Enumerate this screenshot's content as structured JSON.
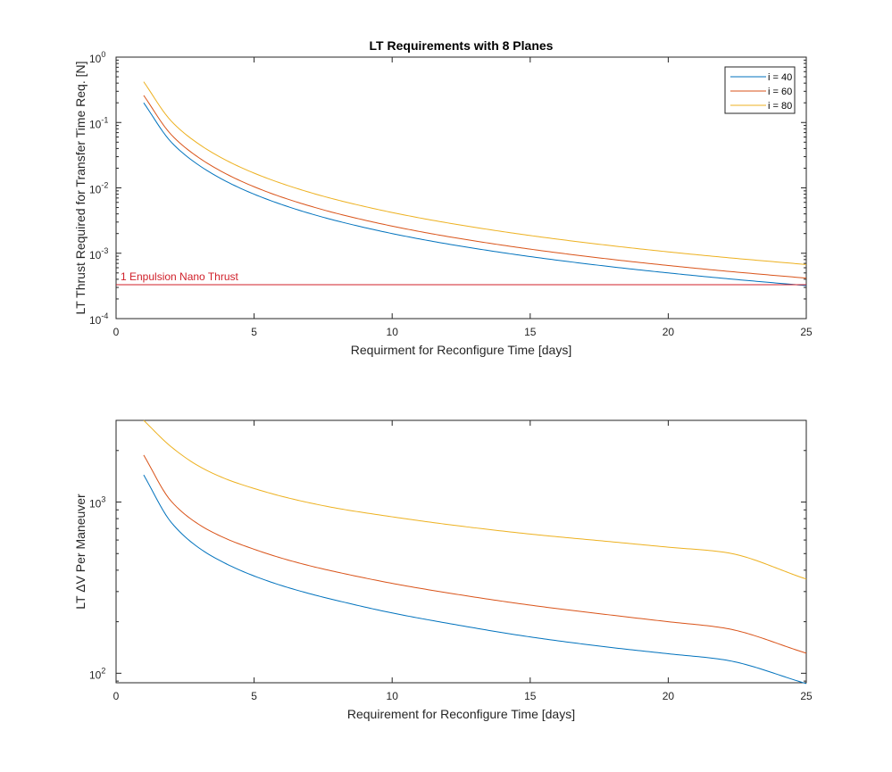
{
  "chart_data": [
    {
      "type": "line",
      "title": "LT Requirements with 8 Planes",
      "xlabel": "Requirment for Reconfigure Time [days]",
      "ylabel": "LT Thrust Required for Transfer Time Req. [N]",
      "xlim": [
        0,
        25
      ],
      "ylim": [
        0.0001,
        1
      ],
      "yscale": "log",
      "grid": false,
      "legend_position": "top-right",
      "x_ticks": [
        0,
        5,
        10,
        15,
        20,
        25
      ],
      "x_tick_labels": [
        "0",
        "5",
        "10",
        "15",
        "20",
        "25"
      ],
      "y_ticks": [
        0.0001,
        0.001,
        0.01,
        0.1,
        1
      ],
      "y_tick_bases": [
        "10",
        "10",
        "10",
        "10",
        "10"
      ],
      "y_tick_exps": [
        "-4",
        "-3",
        "-2",
        "-1",
        "0"
      ],
      "x": [
        1,
        2,
        3,
        4,
        5,
        6,
        7,
        8,
        10,
        12,
        15,
        18,
        20,
        22,
        25
      ],
      "series": [
        {
          "name": "i = 40",
          "color": "#0072BD",
          "values": [
            0.2,
            0.05,
            0.0222,
            0.0125,
            0.008,
            0.00556,
            0.00408,
            0.003125,
            0.002,
            0.001389,
            0.000889,
            0.000617,
            0.0005,
            0.000413,
            0.00032
          ]
        },
        {
          "name": "i = 60",
          "color": "#D95319",
          "values": [
            0.26,
            0.065,
            0.0289,
            0.01625,
            0.0104,
            0.00722,
            0.00531,
            0.00406,
            0.0026,
            0.001806,
            0.001156,
            0.000802,
            0.00065,
            0.000537,
            0.000416
          ]
        },
        {
          "name": "i = 80",
          "color": "#EDB120",
          "values": [
            0.42,
            0.105,
            0.0467,
            0.02625,
            0.0168,
            0.01167,
            0.00857,
            0.00656,
            0.0042,
            0.002917,
            0.001867,
            0.001296,
            0.00105,
            0.000868,
            0.000672
          ]
        }
      ],
      "reference_line": {
        "label": "1 Enpulsion Nano Thrust",
        "value": 0.00033,
        "color": "#D0202A"
      }
    },
    {
      "type": "line",
      "title": "",
      "xlabel": "Requirement for Reconfigure Time [days]",
      "ylabel": "LT ΔV Per Maneuver",
      "xlim": [
        0,
        25
      ],
      "ylim": [
        88,
        3000
      ],
      "yscale": "log",
      "grid": false,
      "x_ticks": [
        0,
        5,
        10,
        15,
        20,
        25
      ],
      "x_tick_labels": [
        "0",
        "5",
        "10",
        "15",
        "20",
        "25"
      ],
      "y_ticks": [
        100,
        1000
      ],
      "y_tick_bases": [
        "10",
        "10"
      ],
      "y_tick_exps": [
        "2",
        "3"
      ],
      "x": [
        1,
        2,
        3,
        4,
        5,
        6,
        7,
        8,
        10,
        12,
        15,
        18,
        20,
        22,
        25
      ],
      "series": [
        {
          "name": "i = 40",
          "color": "#0072BD",
          "values": [
            1440,
            760,
            540,
            435,
            370,
            325,
            292,
            266,
            225,
            196,
            163,
            141,
            130,
            120,
            87
          ]
        },
        {
          "name": "i = 60",
          "color": "#D95319",
          "values": [
            1880,
            1010,
            740,
            610,
            530,
            470,
            425,
            390,
            335,
            295,
            250,
            218,
            200,
            184,
            131
          ]
        },
        {
          "name": "i = 80",
          "color": "#EDB120",
          "values": [
            3000,
            2100,
            1620,
            1360,
            1200,
            1080,
            990,
            920,
            820,
            740,
            650,
            585,
            545,
            510,
            355
          ]
        }
      ]
    }
  ]
}
